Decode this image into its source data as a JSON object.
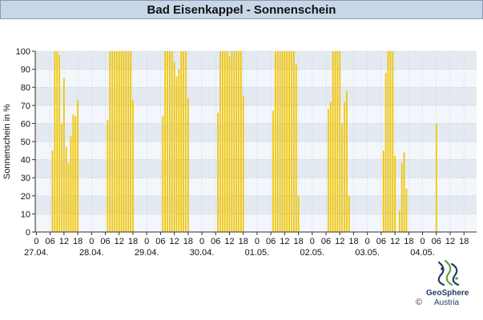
{
  "title": "Bad Eisenkappel - Sonnenschein",
  "chart_data": {
    "type": "bar",
    "title": "Bad Eisenkappel - Sonnenschein",
    "ylabel": "Sonnenschein in %",
    "ylim": [
      0,
      100
    ],
    "yticks": [
      0,
      10,
      20,
      30,
      40,
      50,
      60,
      70,
      80,
      90,
      100
    ],
    "hours_per_day": 24,
    "x_tick_hours": [
      "0",
      "06",
      "12",
      "18"
    ],
    "days": [
      "27.04.",
      "28.04.",
      "29.04.",
      "30.04.",
      "01.05.",
      "02.05.",
      "03.05.",
      "04.05."
    ],
    "series": [
      {
        "color": "#f2c500",
        "values": [
          [
            0,
            0,
            0,
            0,
            0,
            0,
            0,
            45,
            100,
            100,
            98,
            60,
            85,
            47,
            38,
            53,
            65,
            64,
            73,
            0,
            0,
            0,
            0,
            0
          ],
          [
            0,
            0,
            0,
            0,
            0,
            0,
            0,
            62,
            100,
            100,
            100,
            100,
            100,
            100,
            100,
            100,
            100,
            100,
            73,
            0,
            0,
            0,
            0,
            0
          ],
          [
            0,
            0,
            0,
            0,
            0,
            0,
            0,
            64,
            100,
            100,
            100,
            100,
            94,
            86,
            90,
            100,
            100,
            100,
            74,
            0,
            0,
            0,
            0,
            0
          ],
          [
            0,
            0,
            0,
            0,
            0,
            0,
            0,
            66,
            100,
            100,
            100,
            100,
            97,
            100,
            100,
            100,
            100,
            100,
            75,
            0,
            0,
            0,
            0,
            0
          ],
          [
            0,
            0,
            0,
            0,
            0,
            0,
            0,
            67,
            100,
            100,
            100,
            100,
            100,
            100,
            100,
            100,
            100,
            93,
            20,
            0,
            0,
            0,
            0,
            0
          ],
          [
            0,
            0,
            0,
            0,
            0,
            0,
            0,
            68,
            72,
            100,
            100,
            100,
            100,
            60,
            72,
            78,
            20,
            0,
            0,
            0,
            0,
            0,
            0,
            0
          ],
          [
            0,
            0,
            0,
            0,
            0,
            0,
            0,
            45,
            88,
            100,
            100,
            100,
            42,
            0,
            12,
            38,
            44,
            24,
            0,
            0,
            0,
            0,
            0,
            0
          ],
          [
            0,
            0,
            0,
            0,
            0,
            0,
            60
          ]
        ]
      }
    ],
    "grid": true,
    "band_colors": [
      "#f3f6fa",
      "#e4eaf2"
    ]
  },
  "logo": {
    "brand": "GeoSphere",
    "sub": "Austria",
    "copyright": "©"
  }
}
